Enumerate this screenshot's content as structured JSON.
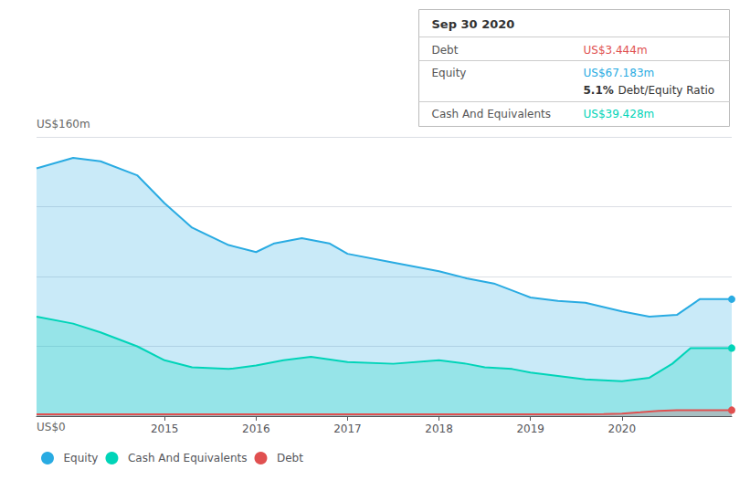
{
  "chart_data": {
    "type": "area",
    "xlim": [
      2013.6,
      2021.2
    ],
    "xticks": [
      2015,
      2016,
      2017,
      2018,
      2019,
      2020
    ],
    "ylim": [
      0,
      160
    ],
    "yticks": [
      0,
      40,
      80,
      120,
      160
    ],
    "tick_labels": "x",
    "grid": true,
    "legend": "bottom",
    "series": [
      {
        "name": "Equity",
        "color": "#29abe2",
        "x": [
          2013.6,
          2014.0,
          2014.3,
          2014.7,
          2015.0,
          2015.3,
          2015.7,
          2016.0,
          2016.2,
          2016.5,
          2016.8,
          2017.0,
          2017.5,
          2018.0,
          2018.3,
          2018.6,
          2018.9,
          2019.0,
          2019.3,
          2019.6,
          2020.0,
          2020.3,
          2020.6,
          2020.85,
          2021.2
        ],
        "values": [
          142,
          148,
          146,
          138,
          122,
          108,
          98,
          94,
          99,
          102,
          99,
          93,
          88,
          83,
          79,
          76,
          70,
          68,
          66,
          65,
          60,
          57,
          58,
          67,
          67
        ]
      },
      {
        "name": "Cash And Equivalents",
        "color": "#00d4b8",
        "x": [
          2013.6,
          2014.0,
          2014.3,
          2014.7,
          2015.0,
          2015.3,
          2015.7,
          2016.0,
          2016.3,
          2016.6,
          2017.0,
          2017.5,
          2018.0,
          2018.3,
          2018.5,
          2018.8,
          2019.0,
          2019.3,
          2019.6,
          2020.0,
          2020.3,
          2020.55,
          2020.75,
          2021.2
        ],
        "values": [
          57,
          53,
          48,
          40,
          32,
          28,
          27,
          29,
          32,
          34,
          31,
          30,
          32,
          30,
          28,
          27,
          25,
          23,
          21,
          20,
          22,
          30,
          39,
          39
        ]
      },
      {
        "name": "Debt",
        "color": "#e05050",
        "x": [
          2013.6,
          2014.0,
          2015.0,
          2016.0,
          2017.0,
          2018.0,
          2019.0,
          2019.5,
          2019.8,
          2020.0,
          2020.2,
          2020.4,
          2020.6,
          2020.75,
          2021.2
        ],
        "values": [
          1.0,
          1.0,
          1.0,
          1.0,
          1.0,
          1.0,
          1.0,
          1.0,
          1.2,
          1.5,
          2.2,
          3.0,
          3.4,
          3.444,
          3.444
        ]
      }
    ],
    "annotations": [
      {
        "text": "US$160m"
      },
      {
        "text": "US$0"
      },
      {
        "text": "Sep 30 2020"
      },
      {
        "text": "Debt"
      },
      {
        "text": "US$3.444m",
        "color": "#e05050"
      },
      {
        "text": "Equity"
      },
      {
        "text": "US$67.183m",
        "color": "#29abe2"
      },
      {
        "text": "5.1%"
      },
      {
        "text": "Debt/Equity Ratio"
      },
      {
        "text": "Cash And Equivalents"
      },
      {
        "text": "US$39.428m",
        "color": "#00d4b8"
      }
    ]
  }
}
